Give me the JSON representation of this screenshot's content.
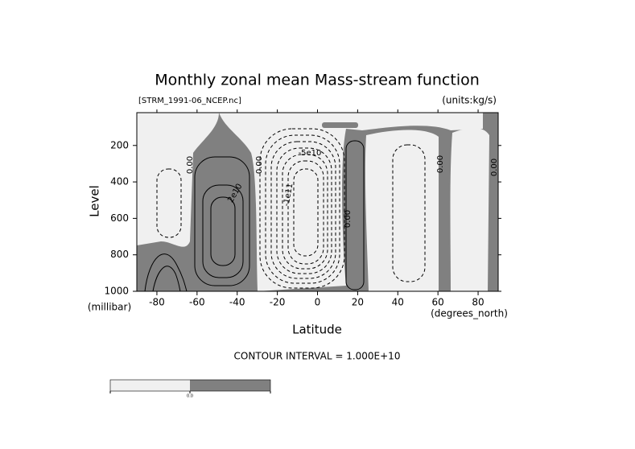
{
  "chart_data": {
    "type": "contour",
    "title": "Monthly zonal mean Mass-stream function",
    "subtitle_left": "[STRM_1991-06_NCEP.nc]",
    "subtitle_right": "(units:kg/s)",
    "x_label": "Latitude",
    "x_unit": "(degrees_north)",
    "y_label": "Level",
    "y_unit": "(millibar)",
    "xlim": [
      -90,
      90
    ],
    "xticks": [
      -80,
      -60,
      -40,
      -20,
      0,
      20,
      40,
      60,
      80
    ],
    "ylim": [
      1000,
      20
    ],
    "yticks": [
      200,
      400,
      600,
      800,
      1000
    ],
    "note": "CONTOUR INTERVAL = 1.000E+10",
    "colorbar_label": "0.0",
    "colors": {
      "negative": "#f0f0f0",
      "positive": "#808080"
    },
    "annotations": [
      "0.00",
      "0.00",
      "0.00",
      "0.00",
      "0.00",
      "2e10",
      "-1e11",
      "-5e10"
    ]
  }
}
